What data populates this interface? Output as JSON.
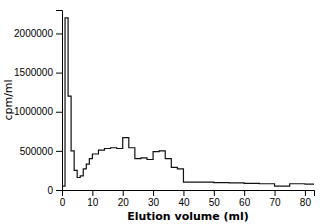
{
  "chart_data": {
    "type": "step",
    "xlabel": "Elution volume (ml)",
    "ylabel": "cpm/ml",
    "x": [
      0,
      1,
      2,
      3,
      4,
      5,
      6,
      7,
      8,
      9,
      10,
      12,
      14,
      16,
      18,
      20,
      22,
      24,
      26,
      28,
      30,
      32,
      34,
      36,
      38,
      40,
      45,
      50,
      55,
      60,
      65,
      70,
      75,
      80,
      83
    ],
    "values": [
      50000,
      2200000,
      1200000,
      500000,
      250000,
      160000,
      180000,
      270000,
      330000,
      400000,
      460000,
      510000,
      530000,
      540000,
      530000,
      670000,
      540000,
      400000,
      410000,
      390000,
      490000,
      500000,
      400000,
      290000,
      270000,
      100000,
      100000,
      95000,
      90000,
      85000,
      80000,
      50000,
      80000,
      75000,
      75000
    ],
    "color": "#111111",
    "xlim": [
      0,
      83
    ],
    "ylim": [
      0,
      2300000
    ],
    "xticks": [
      0,
      10,
      20,
      30,
      40,
      50,
      60,
      70,
      80
    ],
    "yticks": [
      0,
      500000,
      1000000,
      1500000,
      2000000
    ],
    "grid": false
  }
}
